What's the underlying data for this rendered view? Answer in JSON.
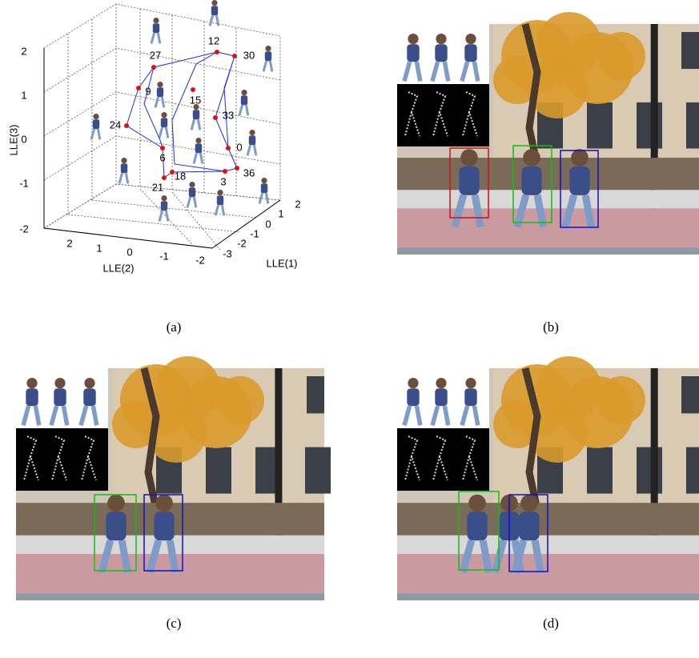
{
  "panels": [
    {
      "caption": "(a)",
      "axes": {
        "x_label": "LLE(1)",
        "y_label": "LLE(2)",
        "z_label": "LLE(3)",
        "x_ticks": [
          -3,
          -2,
          -1,
          0,
          1,
          2
        ],
        "y_ticks": [
          2,
          1,
          0,
          -1,
          -2
        ],
        "z_ticks": [
          2,
          1,
          0,
          -1,
          -2
        ]
      },
      "points": [
        0,
        3,
        6,
        9,
        12,
        15,
        18,
        21,
        24,
        27,
        30,
        33,
        36
      ]
    },
    {
      "caption": "(b)"
    },
    {
      "caption": "(c)"
    },
    {
      "caption": "(d)"
    }
  ]
}
